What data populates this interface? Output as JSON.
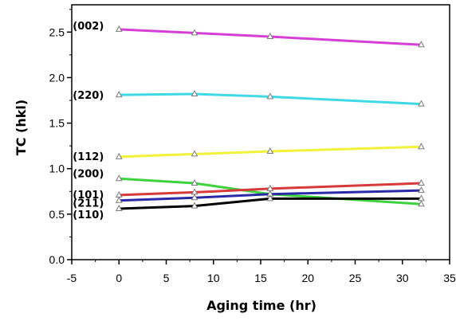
{
  "chart_data": {
    "type": "line",
    "title": "",
    "xlabel": "Aging time (hr)",
    "ylabel": "TC (hkl)",
    "xlim": [
      -5,
      35
    ],
    "ylim": [
      0.0,
      2.8
    ],
    "xticks": [
      -5,
      0,
      5,
      10,
      15,
      20,
      25,
      30,
      35
    ],
    "xtick_labels": [
      "-5",
      "0",
      "5",
      "10",
      "15",
      "20",
      "25",
      "30",
      "35"
    ],
    "yticks": [
      0.0,
      0.5,
      1.0,
      1.5,
      2.0,
      2.5
    ],
    "ytick_labels": [
      "0.0",
      "0.5",
      "1.0",
      "1.5",
      "2.0",
      "2.5"
    ],
    "grid": false,
    "legend": "none",
    "x": [
      0,
      8,
      16,
      32
    ],
    "series": [
      {
        "name": "(002)",
        "color": "#d63fd6",
        "values": [
          2.53,
          2.49,
          2.45,
          2.36
        ]
      },
      {
        "name": "(220)",
        "color": "#3fd9e6",
        "values": [
          1.81,
          1.82,
          1.79,
          1.71
        ]
      },
      {
        "name": "(112)",
        "color": "#f2f23a",
        "values": [
          1.13,
          1.16,
          1.19,
          1.24
        ]
      },
      {
        "name": "(200)",
        "color": "#3fd23f",
        "values": [
          0.89,
          0.84,
          0.72,
          0.61
        ]
      },
      {
        "name": "(101)",
        "color": "#d63a3a",
        "values": [
          0.71,
          0.74,
          0.78,
          0.84
        ]
      },
      {
        "name": "(211)",
        "color": "#2a2aa8",
        "values": [
          0.65,
          0.68,
          0.72,
          0.76
        ]
      },
      {
        "name": "(110)",
        "color": "#000000",
        "values": [
          0.56,
          0.59,
          0.67,
          0.67
        ]
      }
    ]
  }
}
